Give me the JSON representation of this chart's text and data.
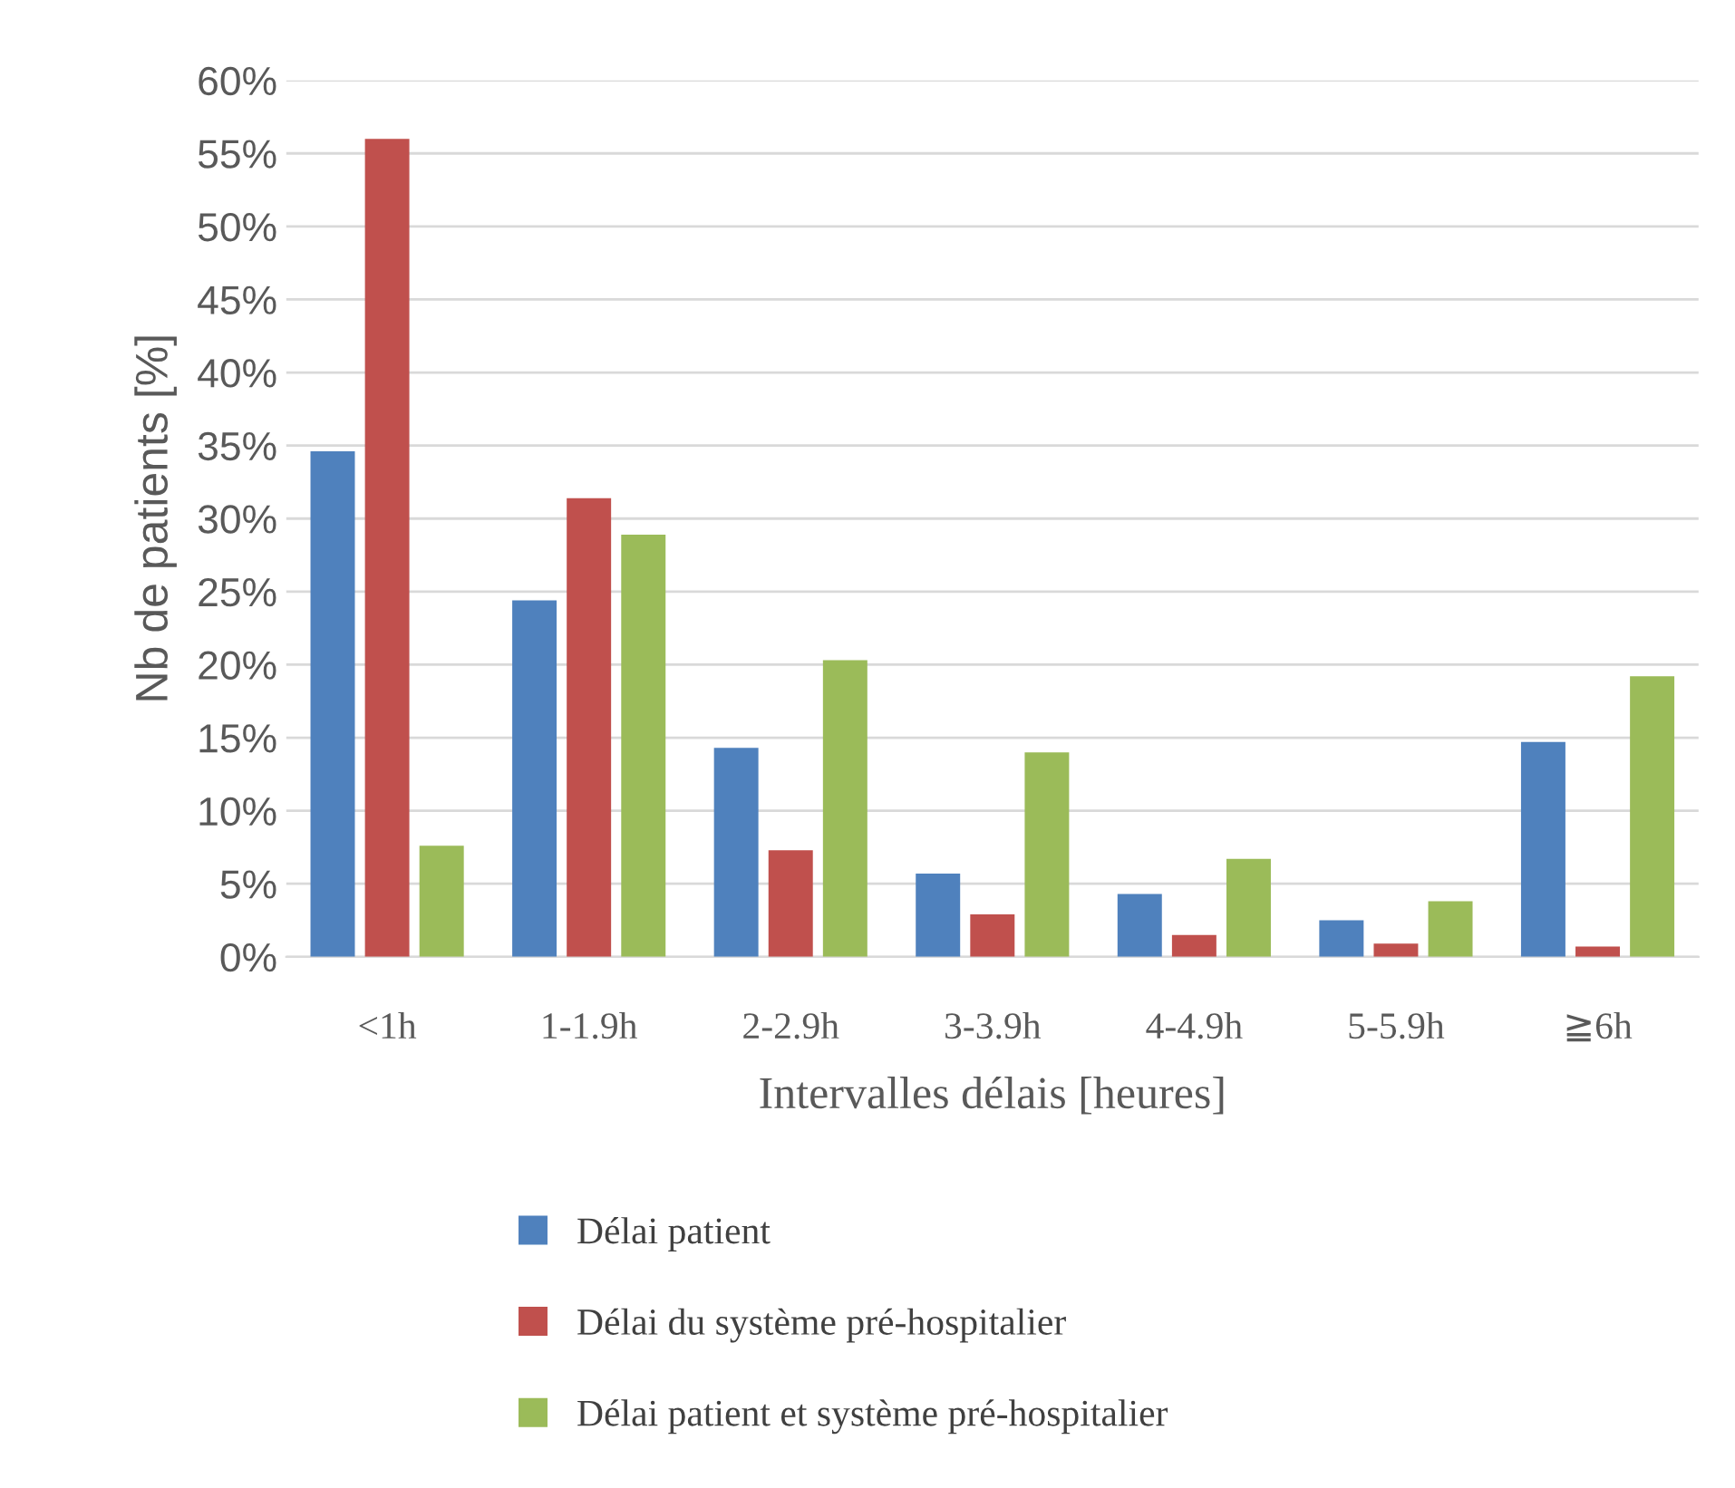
{
  "chart_data": {
    "type": "bar",
    "xlabel": "Intervalles délais [heures]",
    "ylabel": "Nb de patients [%]",
    "categories": [
      "<1h",
      "1-1.9h",
      "2-2.9h",
      "3-3.9h",
      "4-4.9h",
      "5-5.9h",
      "≧6h"
    ],
    "series": [
      {
        "name": "Délai patient",
        "color": "#4f81bd",
        "values": [
          34.6,
          24.4,
          14.3,
          5.7,
          4.3,
          2.5,
          14.7
        ]
      },
      {
        "name": "Délai du système pré-hospitalier",
        "color": "#c0504d",
        "values": [
          56.0,
          31.4,
          7.3,
          2.9,
          1.5,
          0.9,
          0.7
        ]
      },
      {
        "name": "Délai patient et système pré-hospitalier",
        "color": "#9bbb59",
        "values": [
          7.6,
          28.9,
          20.3,
          14.0,
          6.7,
          3.8,
          19.2
        ]
      }
    ],
    "ylim": [
      0,
      60
    ],
    "yticks": [
      {
        "value": 0,
        "label": "0%"
      },
      {
        "value": 5,
        "label": "5%"
      },
      {
        "value": 10,
        "label": "10%"
      },
      {
        "value": 15,
        "label": "15%"
      },
      {
        "value": 20,
        "label": "20%"
      },
      {
        "value": 25,
        "label": "25%"
      },
      {
        "value": 30,
        "label": "30%"
      },
      {
        "value": 35,
        "label": "35%"
      },
      {
        "value": 40,
        "label": "40%"
      },
      {
        "value": 45,
        "label": "45%"
      },
      {
        "value": 50,
        "label": "50%"
      },
      {
        "value": 55,
        "label": "55%"
      },
      {
        "value": 60,
        "label": "60%"
      }
    ],
    "grid": "y",
    "legend": "bottom"
  }
}
